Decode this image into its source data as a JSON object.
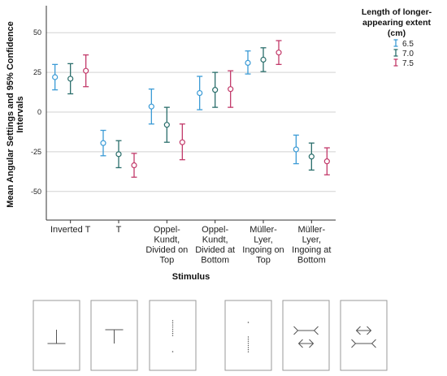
{
  "chart_data": {
    "type": "errorbar",
    "xlabel": "Stimulus",
    "ylabel": [
      "Mean Angular Settings and 95% Confidence",
      "Intervals"
    ],
    "ylim": [
      -68,
      67
    ],
    "yticks": [
      50,
      25,
      0,
      -25,
      -50
    ],
    "ytick_labels": [
      "50",
      "25",
      "0",
      "-25",
      "-50"
    ],
    "grid": true,
    "categories": [
      [
        "Inverted T"
      ],
      [
        "T"
      ],
      [
        "Oppel-",
        "Kundt,",
        "Divided on",
        "Top"
      ],
      [
        "Oppel-",
        "Kundt,",
        "Divided at",
        "Bottom"
      ],
      [
        "Müller-",
        "Lyer,",
        "Ingoing on",
        "Top"
      ],
      [
        "Müller-",
        "Lyer,",
        "Ingoing at",
        "Bottom"
      ]
    ],
    "legend": {
      "title": [
        "Length of longer-",
        "appearing extent",
        "(cm)"
      ],
      "position": "top-right"
    },
    "series": [
      {
        "name": "6.5",
        "color": "#3b9bd6",
        "mean": [
          22,
          -19.5,
          3.5,
          12,
          31,
          -23.5
        ],
        "lower": [
          14,
          -27.5,
          -7.5,
          1.5,
          24,
          -32.5
        ],
        "upper": [
          30,
          -11.5,
          14.5,
          22.5,
          38.5,
          -14.5
        ]
      },
      {
        "name": "7.0",
        "color": "#2a6e6b",
        "mean": [
          21,
          -26.5,
          -8,
          14,
          33,
          -28
        ],
        "lower": [
          11.5,
          -35,
          -19,
          3,
          25.5,
          -36.5
        ],
        "upper": [
          30.5,
          -18,
          3,
          25,
          40.5,
          -19.5
        ]
      },
      {
        "name": "7.5",
        "color": "#c23a6a",
        "mean": [
          26,
          -33.5,
          -19,
          14.5,
          37.5,
          -31
        ],
        "lower": [
          16,
          -41,
          -30,
          3,
          30,
          -39.5
        ],
        "upper": [
          36,
          -26,
          -7.5,
          26,
          45,
          -22.5
        ]
      }
    ]
  },
  "stimuli_panels": [
    {
      "name": "stimulus-inverted-t-figure"
    },
    {
      "name": "stimulus-t-figure"
    },
    {
      "name": "stimulus-oppel-kundt-divided-on-top"
    },
    {
      "name": "stimulus-oppel-kundt-divided-at-bottom"
    },
    {
      "name": "stimulus-muller-lyer-ingoing-on-top"
    },
    {
      "name": "stimulus-muller-lyer-ingoing-at-bottom"
    }
  ]
}
